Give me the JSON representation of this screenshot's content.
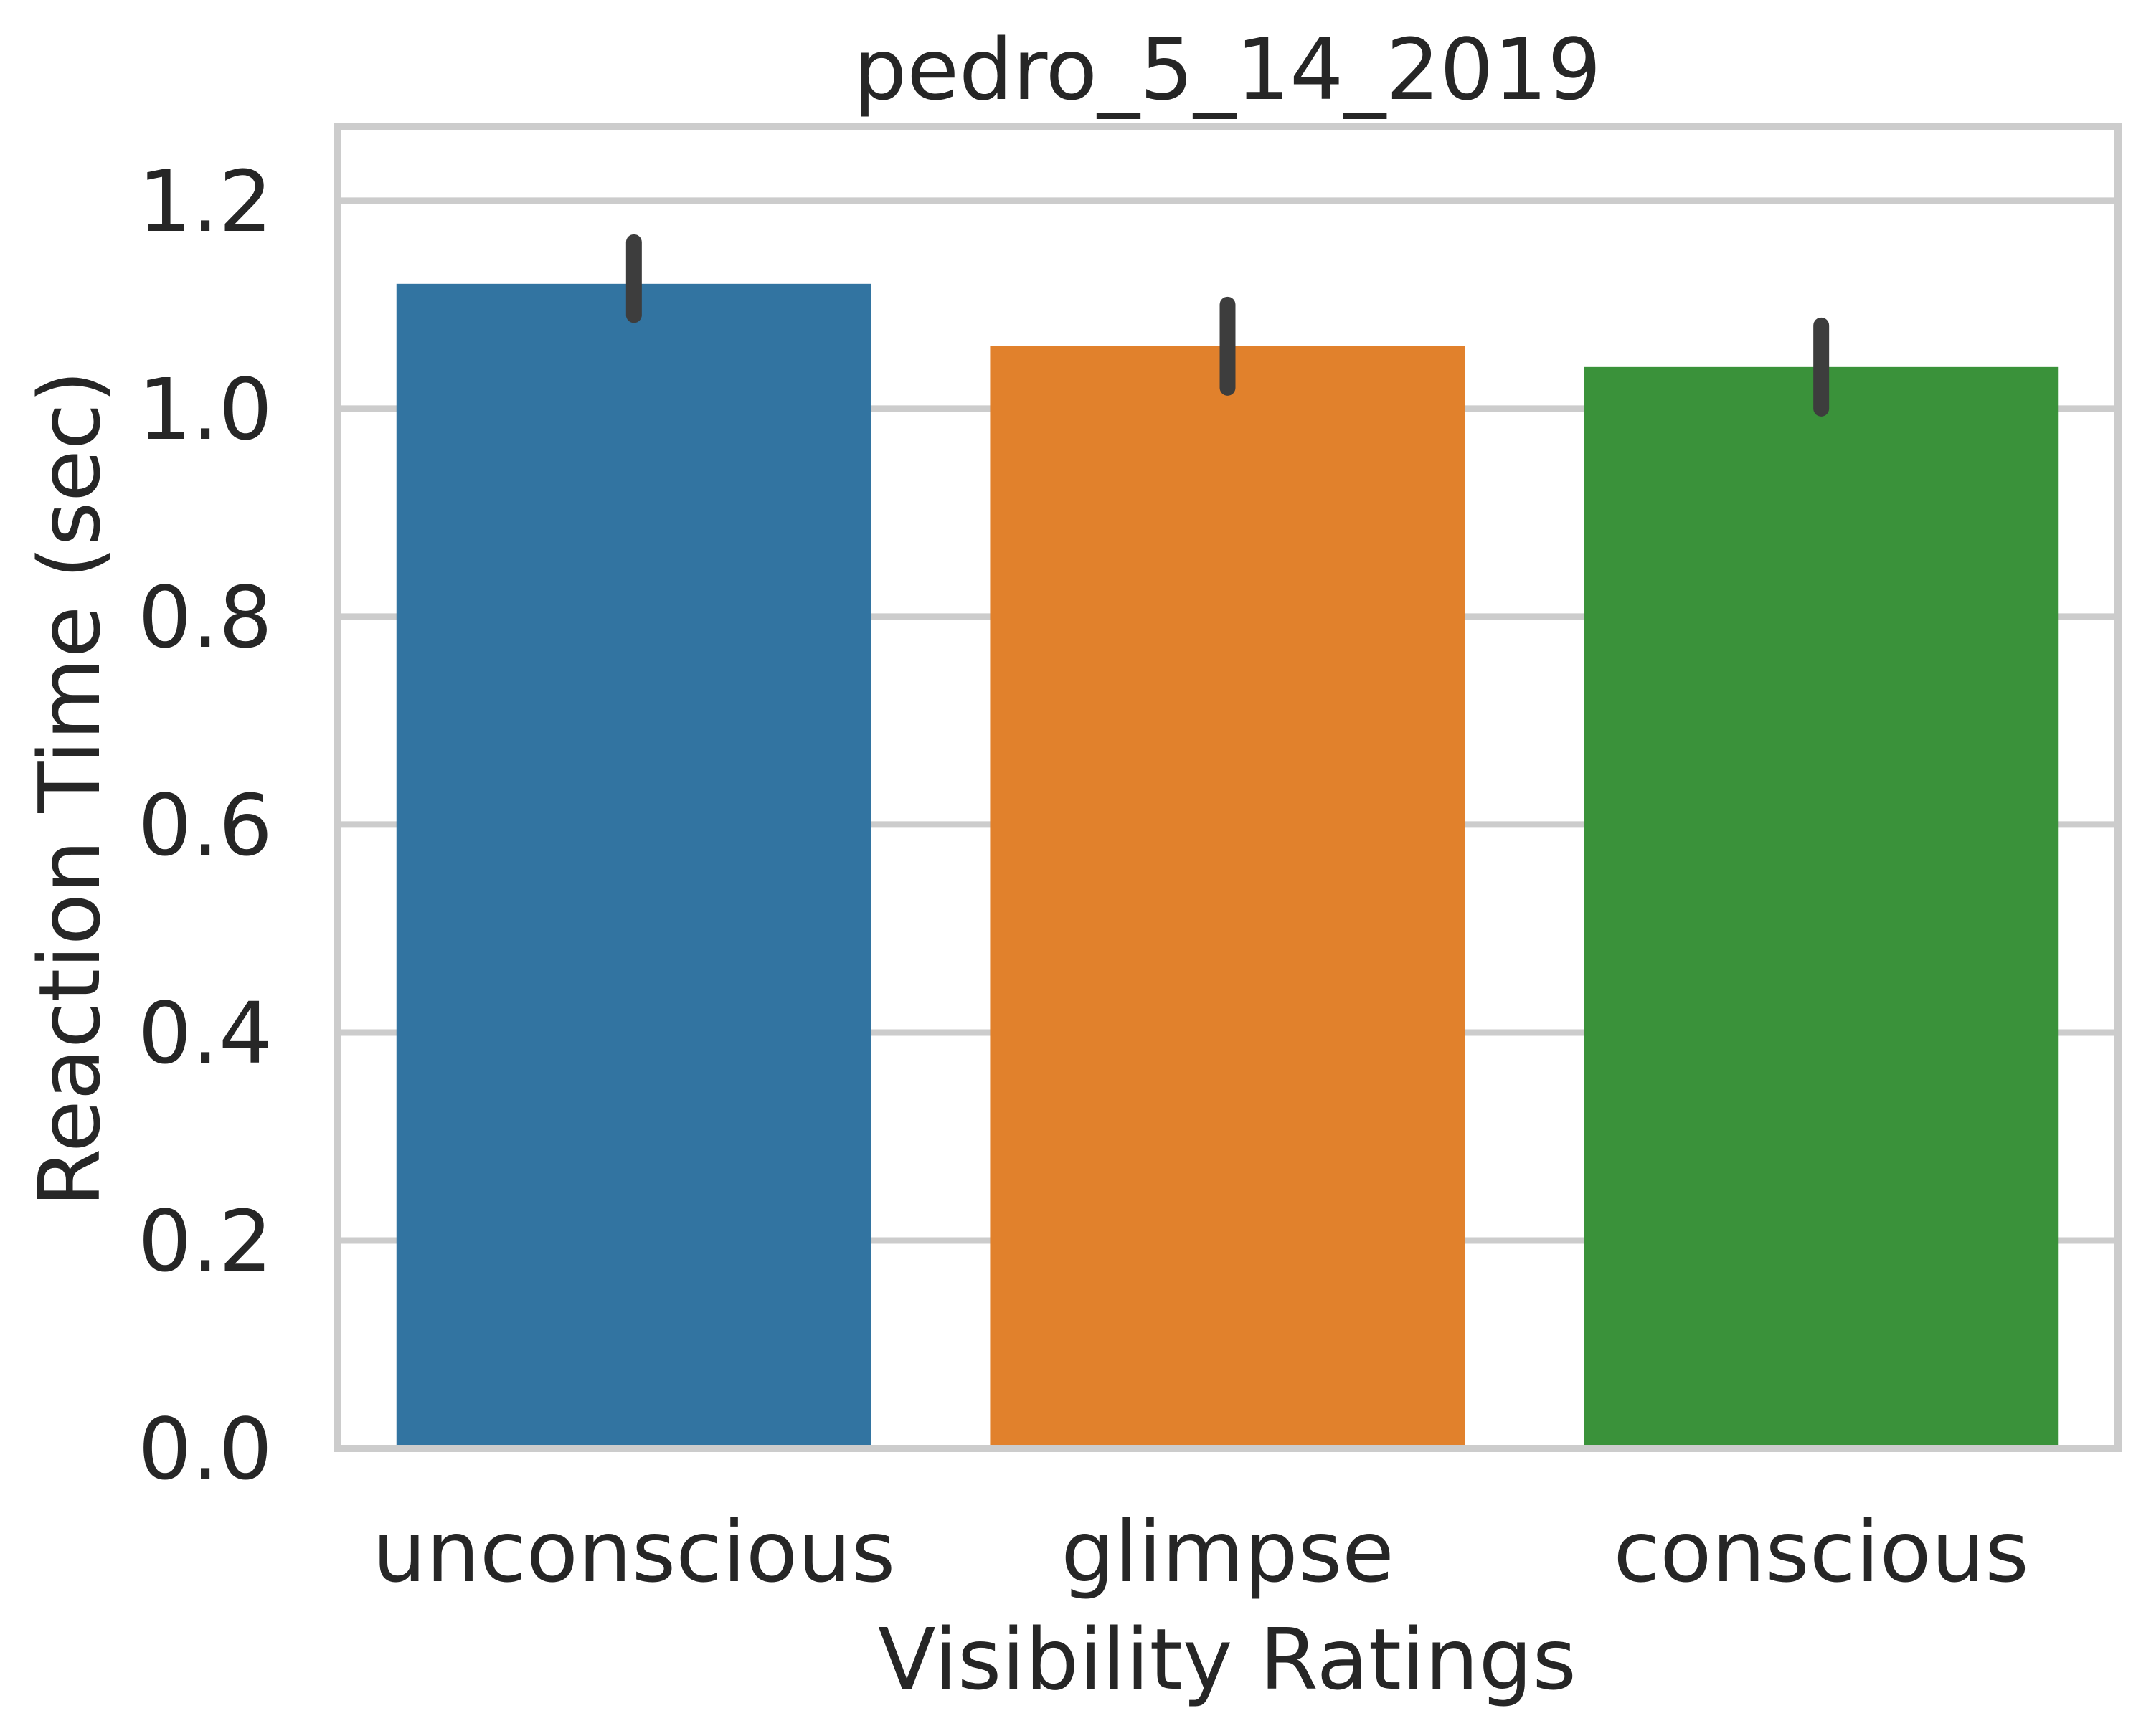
{
  "chart_data": {
    "type": "bar",
    "title": "pedro_5_14_2019",
    "xlabel": "Visibility Ratings",
    "ylabel": "Reaction Time (sec)",
    "categories": [
      "unconscious",
      "glimpse",
      "conscious"
    ],
    "values": [
      1.12,
      1.06,
      1.04
    ],
    "error_bars": [
      {
        "low": 1.09,
        "high": 1.16
      },
      {
        "low": 1.02,
        "high": 1.1
      },
      {
        "low": 1.0,
        "high": 1.08
      }
    ],
    "colors": [
      "#3274a1",
      "#e1812c",
      "#3a923a"
    ],
    "error_color": "#3d3d3d",
    "grid_color": "#cccccc",
    "ylim": [
      0.0,
      1.2
    ],
    "yticks": [
      "0.0",
      "0.2",
      "0.4",
      "0.6",
      "0.8",
      "1.0",
      "1.2"
    ],
    "ytick_values": [
      0.0,
      0.2,
      0.4,
      0.6,
      0.8,
      1.0,
      1.2
    ],
    "grid": "horizontal"
  }
}
